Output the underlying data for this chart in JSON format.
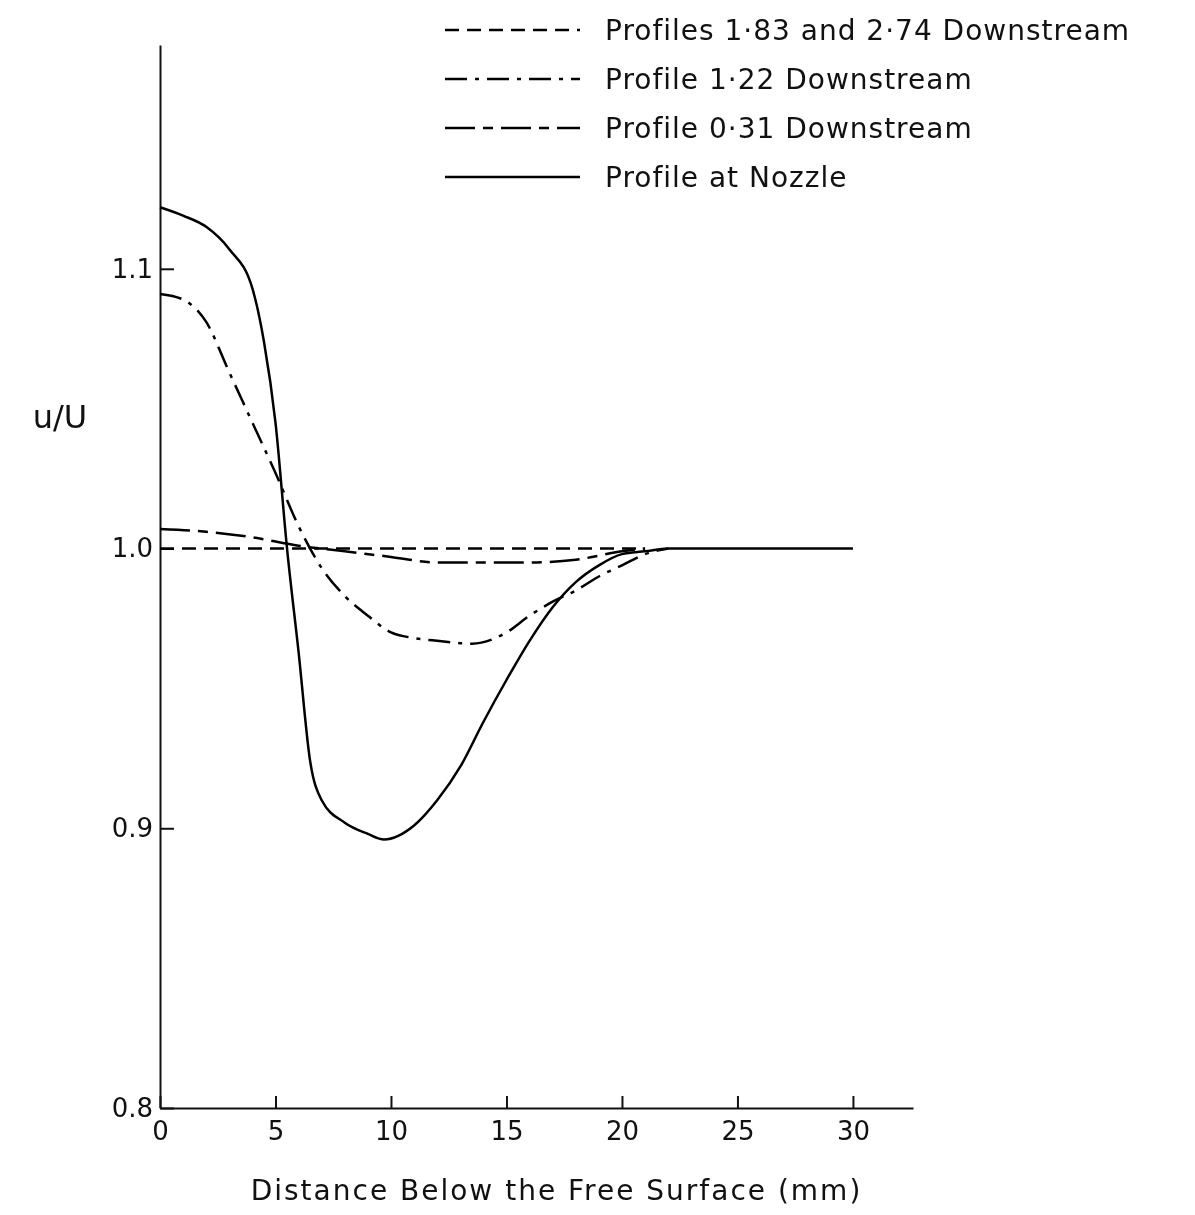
{
  "chart_data": {
    "type": "line",
    "xlabel": "Distance Below the Free Surface (mm)",
    "ylabel": "u/U",
    "legend": "top right",
    "grid": false,
    "xlim": [
      0,
      32.6
    ],
    "xticks": [
      0,
      5,
      10,
      15,
      20,
      25,
      30
    ],
    "ylim": [
      0.8,
      1.18
    ],
    "yticks": [
      0.8,
      0.9,
      {
        "value": 1.0,
        "label": "1.0"
      },
      1.1
    ],
    "series": [
      {
        "name": "Profiles 1·83 and 2·74 Downstream",
        "color": "#000000",
        "line_style": "dashed",
        "x": [
          0,
          5,
          10,
          15,
          21
        ],
        "values": [
          1.0,
          1.0,
          1.0,
          1.0,
          1.0
        ]
      },
      {
        "name": "Profile 1·22 Downstream",
        "color": "#000000",
        "line_style": "dashdot",
        "x": [
          0,
          1,
          2,
          3,
          4,
          5,
          6,
          7,
          8,
          9,
          10,
          11,
          12,
          13.5,
          15,
          16,
          17,
          18,
          19,
          20,
          21,
          22
        ],
        "values": [
          1.091,
          1.089,
          1.081,
          1.063,
          1.045,
          1.027,
          1.008,
          0.993,
          0.983,
          0.976,
          0.97,
          0.968,
          0.967,
          0.966,
          0.97,
          0.976,
          0.981,
          0.985,
          0.99,
          0.994,
          0.998,
          1.0
        ]
      },
      {
        "name": "Profile 0·31 Downstream",
        "color": "#000000",
        "line_style": "longdash",
        "x": [
          0,
          2,
          4,
          6,
          8,
          10,
          12,
          14,
          16,
          18,
          20,
          21
        ],
        "values": [
          1.007,
          1.006,
          1.004,
          1.001,
          0.999,
          0.997,
          0.995,
          0.995,
          0.995,
          0.996,
          0.999,
          1.0
        ]
      },
      {
        "name": "Profile at Nozzle",
        "color": "#000000",
        "line_style": "solid",
        "x": [
          0,
          1,
          2,
          3,
          4,
          4.5,
          5,
          5.5,
          6,
          6.5,
          7,
          8,
          9,
          9.7,
          11,
          12,
          13,
          14,
          15,
          16,
          17,
          18,
          19,
          20,
          21,
          22,
          30
        ],
        "values": [
          1.122,
          1.119,
          1.115,
          1.107,
          1.093,
          1.074,
          1.045,
          1.0,
          0.963,
          0.924,
          0.91,
          0.902,
          0.898,
          0.896,
          0.901,
          0.91,
          0.922,
          0.938,
          0.953,
          0.967,
          0.979,
          0.988,
          0.994,
          0.998,
          0.999,
          1.0,
          1.0
        ]
      }
    ]
  }
}
